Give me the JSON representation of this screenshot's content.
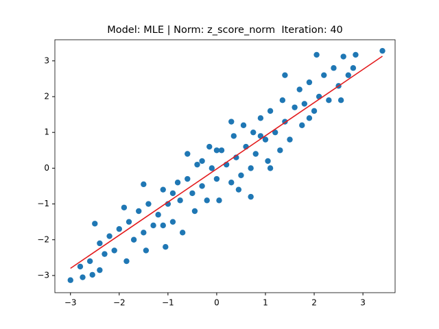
{
  "chart_data": {
    "type": "scatter",
    "title": "Model: MLE | Norm: z_score_norm  Iteration: 40",
    "xlim": [
      -3.32,
      3.66
    ],
    "ylim": [
      -3.48,
      3.59
    ],
    "xticks": [
      {
        "value": -3,
        "label": "−3"
      },
      {
        "value": -2,
        "label": "−2"
      },
      {
        "value": -1,
        "label": "−1"
      },
      0,
      1,
      2,
      3
    ],
    "yticks": [
      {
        "value": -3,
        "label": "−3"
      },
      {
        "value": -2,
        "label": "−2"
      },
      {
        "value": -1,
        "label": "−1"
      },
      0,
      1,
      2,
      3
    ],
    "series": [
      {
        "color": "#1f77b4",
        "x": [
          -3,
          -2.75,
          -2.8,
          -2.6,
          -2.55,
          -2.4,
          -2.5,
          -2.3,
          -2.2,
          -2.1,
          -2.0,
          -1.9,
          -1.85,
          -1.8,
          -1.7,
          -1.6,
          -1.5,
          -1.45,
          -1.4,
          -1.3,
          -1.2,
          -1.1,
          -1.05,
          -1.0,
          -0.9,
          -0.8,
          -0.75,
          -0.7,
          -0.6,
          -0.5,
          -0.45,
          -0.4,
          -0.3,
          -0.2,
          -0.15,
          -0.1,
          0,
          0.05,
          0.1,
          0.2,
          0.3,
          0.35,
          0.4,
          0.5,
          0.55,
          0.6,
          0.7,
          0.75,
          0.8,
          0.9,
          1.0,
          1.05,
          1.1,
          1.2,
          1.3,
          1.35,
          1.4,
          1.5,
          1.6,
          1.7,
          1.75,
          1.8,
          1.9,
          2.0,
          2.05,
          2.1,
          2.2,
          2.3,
          2.4,
          2.5,
          2.55,
          2.6,
          2.7,
          2.8,
          2.85,
          3.4,
          -1.5,
          1.4,
          -0.6,
          0.3,
          0.7,
          -2.4,
          1.1,
          -1.1,
          0,
          -0.3,
          0.9,
          -0.9,
          0.45,
          1.9
        ],
        "values": [
          -3.13,
          -3.05,
          -2.75,
          -2.6,
          -2.98,
          -2.85,
          -1.55,
          -2.4,
          -1.9,
          -2.3,
          -1.7,
          -1.1,
          -2.6,
          -1.5,
          -2.0,
          -1.2,
          -1.8,
          -2.3,
          -1.0,
          -1.6,
          -1.3,
          -0.6,
          -2.2,
          -1.0,
          -1.5,
          -0.4,
          -0.9,
          -1.8,
          -0.3,
          -0.7,
          -1.2,
          0.1,
          -0.5,
          -0.9,
          0.6,
          0.0,
          -0.3,
          -0.9,
          0.5,
          0.1,
          -0.4,
          0.9,
          0.3,
          -0.2,
          1.2,
          0.6,
          -0.8,
          1.0,
          0.4,
          1.4,
          0.8,
          0.2,
          1.6,
          1.0,
          0.5,
          1.9,
          1.3,
          0.8,
          1.7,
          2.2,
          1.2,
          1.8,
          2.4,
          1.6,
          3.17,
          2.0,
          2.6,
          1.9,
          2.8,
          2.3,
          1.9,
          3.12,
          2.6,
          2.8,
          3.17,
          3.28,
          -0.45,
          2.6,
          0.4,
          1.3,
          0.0,
          -2.1,
          0.0,
          -1.6,
          0.5,
          0.2,
          0.9,
          -0.7,
          -0.6,
          1.4
        ]
      }
    ],
    "fit": {
      "color": "#e31a1c",
      "x": [
        -3,
        3.4
      ],
      "values": [
        -2.8,
        3.13
      ]
    }
  }
}
